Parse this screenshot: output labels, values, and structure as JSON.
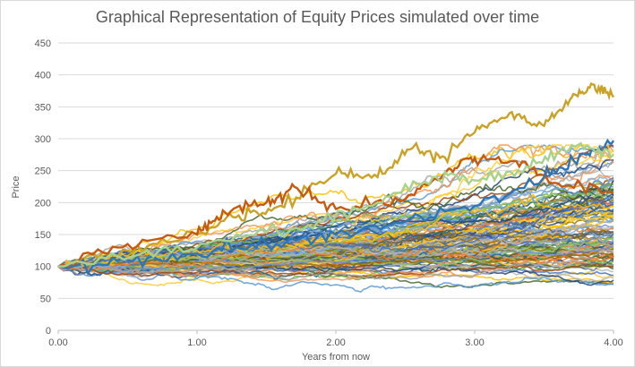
{
  "chart_data": {
    "type": "line",
    "title": "Graphical Representation of Equity Prices simulated over time",
    "xlabel": "Years from now",
    "ylabel": "Price",
    "xlim": [
      0,
      4
    ],
    "ylim": [
      0,
      450
    ],
    "x_ticks": [
      "0.00",
      "1.00",
      "2.00",
      "3.00",
      "4.00"
    ],
    "y_ticks": [
      "0",
      "50",
      "100",
      "150",
      "200",
      "250",
      "300",
      "350",
      "400",
      "450"
    ],
    "grid": true,
    "legend": "none",
    "start_price": 100,
    "num_paths": 130,
    "highlight_paths": [
      {
        "color": "#C9A227",
        "x": [
          0,
          0.5,
          1.0,
          1.3,
          1.6,
          2.0,
          2.3,
          2.55,
          2.75,
          3.0,
          3.25,
          3.5,
          3.7,
          3.85,
          4.0
        ],
        "y": [
          100,
          125,
          150,
          180,
          195,
          245,
          240,
          285,
          270,
          310,
          340,
          320,
          365,
          385,
          365
        ]
      },
      {
        "color": "#C55A11",
        "x": [
          0,
          0.5,
          1.0,
          1.2,
          1.5,
          1.7,
          2.0,
          2.5,
          2.8,
          3.0,
          3.3,
          3.6,
          4.0
        ],
        "y": [
          100,
          135,
          150,
          185,
          200,
          225,
          190,
          205,
          250,
          270,
          265,
          230,
          215
        ]
      },
      {
        "color": "#2E75B6",
        "x": [
          0,
          0.5,
          1.0,
          1.5,
          2.0,
          2.5,
          3.0,
          3.5,
          3.8,
          4.0
        ],
        "y": [
          100,
          110,
          120,
          135,
          150,
          170,
          195,
          240,
          275,
          297
        ]
      },
      {
        "color": "#A9D18E",
        "x": [
          0,
          0.6,
          1.2,
          1.8,
          2.3,
          2.7,
          3.0,
          3.4,
          3.7,
          4.0
        ],
        "y": [
          100,
          120,
          140,
          165,
          200,
          240,
          235,
          255,
          290,
          275
        ]
      }
    ],
    "palette": [
      "#4472C4",
      "#ED7D31",
      "#A5A5A5",
      "#FFC000",
      "#5B9BD5",
      "#70AD47",
      "#264478",
      "#9E480E",
      "#636363",
      "#997300",
      "#255E91",
      "#43682B",
      "#698ED0",
      "#F1975A",
      "#B7B7B7",
      "#FFCD33",
      "#7CAFDD",
      "#8CC168"
    ]
  }
}
